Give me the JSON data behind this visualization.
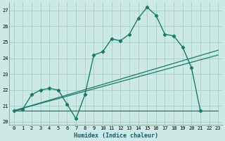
{
  "xlabel": "Humidex (Indice chaleur)",
  "bg_color": "#cce9e5",
  "grid_color": "#aad4cf",
  "line_color": "#1a7a6a",
  "xlim": [
    -0.5,
    23.5
  ],
  "ylim": [
    19.8,
    27.5
  ],
  "yticks": [
    20,
    21,
    22,
    23,
    24,
    25,
    26,
    27
  ],
  "xticks": [
    0,
    1,
    2,
    3,
    4,
    5,
    6,
    7,
    8,
    9,
    10,
    11,
    12,
    13,
    14,
    15,
    16,
    17,
    18,
    19,
    20,
    21,
    22,
    23
  ],
  "series1_x": [
    0,
    1,
    2,
    3,
    4,
    5,
    6,
    7,
    8,
    9,
    10,
    11,
    12,
    13,
    14,
    15,
    16,
    17,
    18,
    19,
    20,
    21
  ],
  "series1_y": [
    20.7,
    20.8,
    21.7,
    22.0,
    22.1,
    22.0,
    21.1,
    20.2,
    21.7,
    24.2,
    24.4,
    25.2,
    25.1,
    25.5,
    26.5,
    27.2,
    26.7,
    25.5,
    25.4,
    24.7,
    23.4,
    20.7
  ],
  "line2_x": [
    0,
    23
  ],
  "line2_y": [
    20.7,
    24.2
  ],
  "line3_x": [
    0,
    23
  ],
  "line3_y": [
    20.7,
    24.5
  ],
  "line4_x": [
    0,
    23
  ],
  "line4_y": [
    20.7,
    20.7
  ]
}
